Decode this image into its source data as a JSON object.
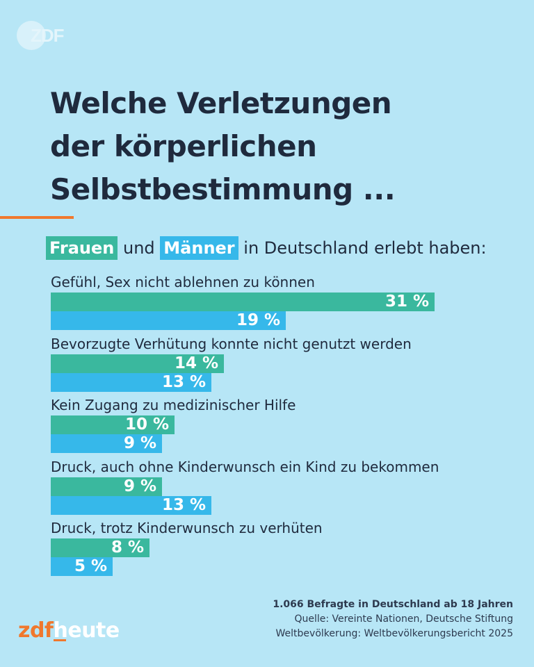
{
  "logo_top": "ZDF",
  "title_lines": [
    "Welche Verletzungen",
    "der körperlichen",
    "Selbstbestimmung ..."
  ],
  "subtitle": {
    "women": "Frauen",
    "connector": "und",
    "men": "Männer",
    "rest": "in Deutschland erlebt haben:"
  },
  "colors": {
    "women": "#3ab89e",
    "men": "#36b8ea",
    "accent": "#f0782d",
    "background": "#b7e6f6"
  },
  "chart_data": {
    "type": "bar",
    "orientation": "horizontal",
    "categories": [
      "Gefühl, Sex nicht ablehnen zu können",
      "Bevorzugte Verhütung konnte nicht genutzt werden",
      "Kein Zugang zu medizinischer Hilfe",
      "Druck, auch ohne Kinderwunsch ein Kind zu bekommen",
      "Druck, trotz Kinderwunsch zu verhüten"
    ],
    "series": [
      {
        "name": "Frauen",
        "values": [
          31,
          14,
          10,
          9,
          8
        ]
      },
      {
        "name": "Männer",
        "values": [
          19,
          13,
          9,
          13,
          5
        ]
      }
    ],
    "value_suffix": " %",
    "legend": "inline in subtitle"
  },
  "footer": {
    "sample": "1.066 Befragte in Deutschland ab 18 Jahren",
    "source_line1": "Quelle: Vereinte Nationen, Deutsche Stiftung",
    "source_line2": "Weltbevölkerung: Weltbevölkerungsbericht 2025"
  },
  "brand": {
    "part1": "zdf",
    "part2": "heute"
  }
}
